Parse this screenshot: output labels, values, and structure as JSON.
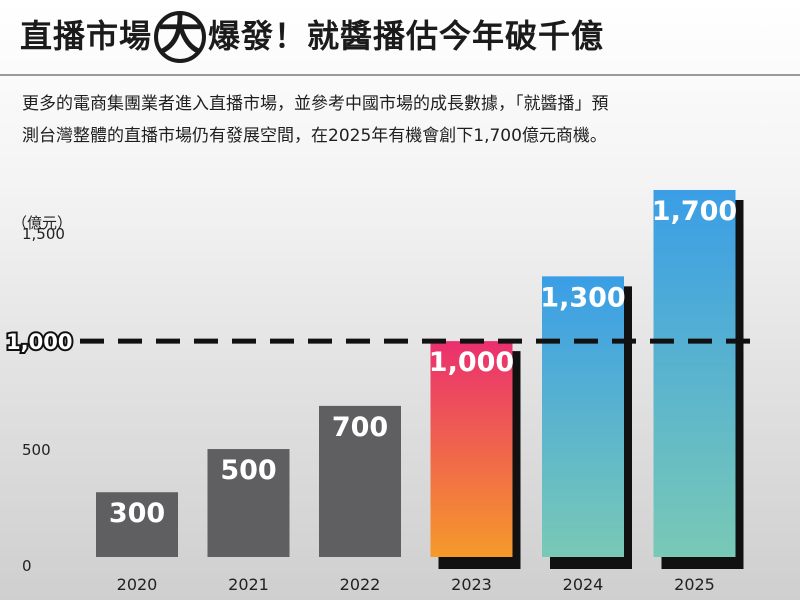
{
  "header": {
    "title_part1": "直播市場",
    "title_big": "大",
    "title_part2": "爆發！就醬播估今年破千億"
  },
  "description": {
    "line1": "更多的電商集團業者進入直播市場，並參考中國市場的成長數據，「就醬播」預",
    "line2": "測台灣整體的直播市場仍有發展空間，在2025年有機會創下1,700億元商機。"
  },
  "chart_data": {
    "type": "bar",
    "unit_label": "（億元）",
    "categories": [
      "2020",
      "2021",
      "2022",
      "2023",
      "2024",
      "2025"
    ],
    "values": [
      300,
      500,
      700,
      1000,
      1300,
      1700
    ],
    "value_labels": [
      "300",
      "500",
      "700",
      "1,000",
      "1,300",
      "1,700"
    ],
    "y_ticks": [
      0,
      500,
      1500
    ],
    "y_tick_labels": [
      "0",
      "500",
      "1,500"
    ],
    "ylim": [
      0,
      1700
    ],
    "reference_line": {
      "value": 1000,
      "label": "1,000"
    },
    "colors": {
      "gray_bar": "#5f5f61",
      "pink_top": "#ea2f6f",
      "pink_bottom": "#f59a2a",
      "blue_top": "#3a9ee6",
      "blue_bottom": "#79c9b6",
      "shadow": "#111111"
    },
    "bar_styles": [
      "gray",
      "gray",
      "gray",
      "pink",
      "blue",
      "blue"
    ]
  }
}
